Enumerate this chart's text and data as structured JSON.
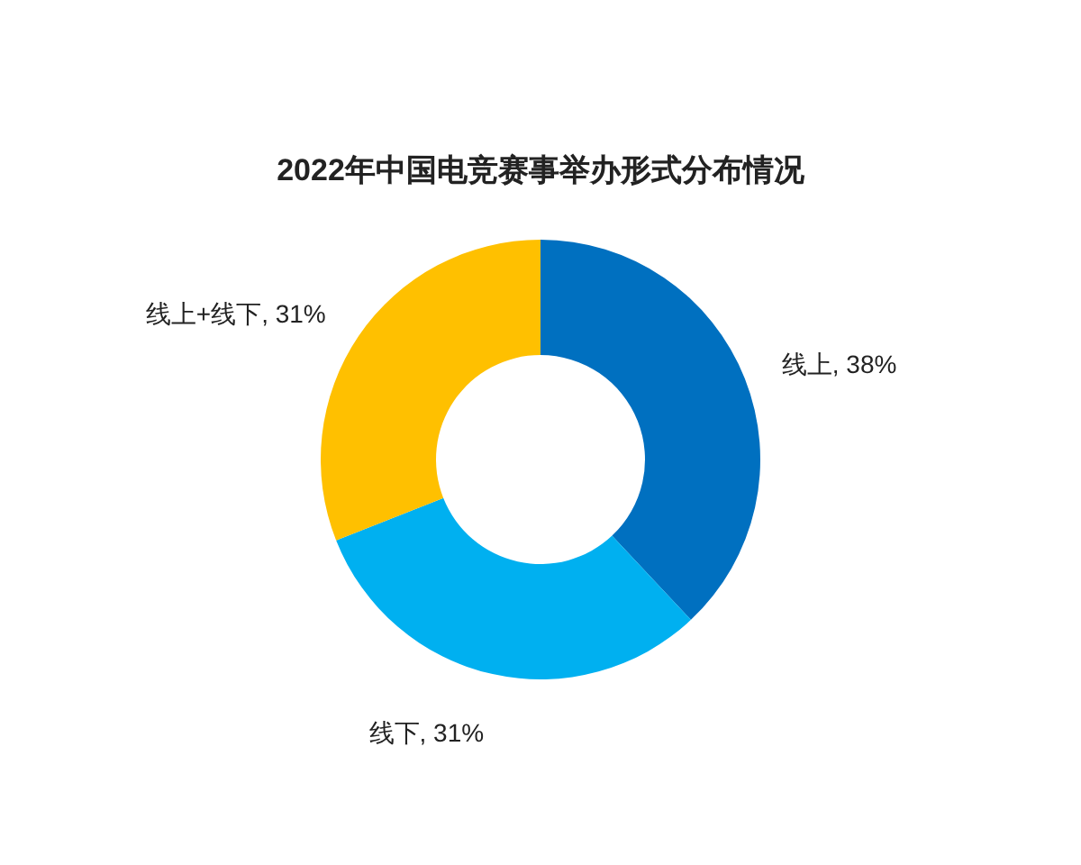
{
  "chart_data": {
    "type": "donut",
    "title": "2022年中国电竞赛事举办形式分布情况",
    "categories": [
      "线上",
      "线下",
      "线上+线下"
    ],
    "values": [
      38,
      31,
      31
    ],
    "colors": [
      "#0070c0",
      "#00b0f0",
      "#ffc000"
    ],
    "value_labels": [
      ", 38%",
      ", 31%",
      ", 31%"
    ]
  }
}
